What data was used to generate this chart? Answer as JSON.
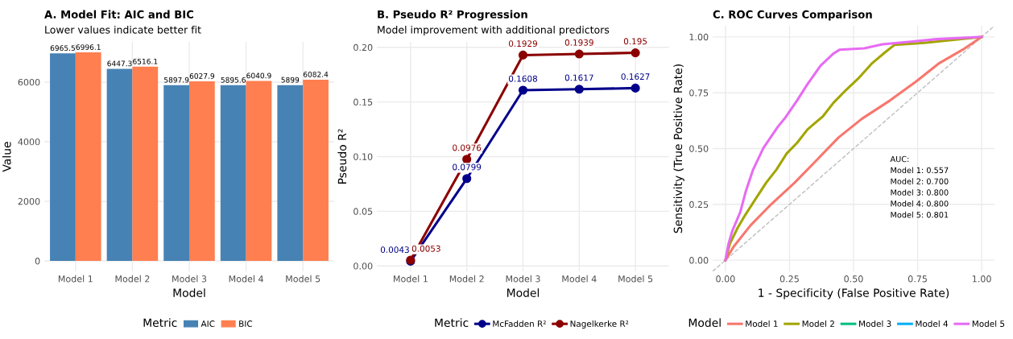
{
  "chart_data": [
    {
      "type": "bar",
      "title": "A. Model Fit: AIC and BIC",
      "subtitle": "Lower values indicate better fit",
      "xlabel": "Model",
      "ylabel": "Value",
      "legend_title": "Metric",
      "categories": [
        "Model 1",
        "Model 2",
        "Model 3",
        "Model 4",
        "Model 5"
      ],
      "series": [
        {
          "name": "AIC",
          "color": "#4682b4",
          "values": [
            6965.5,
            6447.3,
            5897.9,
            5895.6,
            5899
          ]
        },
        {
          "name": "BIC",
          "color": "#ff7f50",
          "values": [
            6996.1,
            6516.1,
            6027.9,
            6040.9,
            6082.4
          ]
        }
      ],
      "ylim": [
        -350,
        7350
      ],
      "yticks": [
        0,
        2000,
        4000,
        6000
      ],
      "grid": true,
      "legend": "bottom",
      "data_labels": true
    },
    {
      "type": "line",
      "title": "B. Pseudo R² Progression",
      "subtitle": "Model improvement with additional predictors",
      "xlabel": "Model",
      "ylabel": "Pseudo R²",
      "legend_title": "Metric",
      "categories": [
        "Model 1",
        "Model 2",
        "Model 3",
        "Model 4",
        "Model 5"
      ],
      "series": [
        {
          "name": "McFadden R²",
          "color": "#00008b",
          "values": [
            0.0043,
            0.0799,
            0.1608,
            0.1617,
            0.1627
          ]
        },
        {
          "name": "Nagelkerke R²",
          "color": "#8b0000",
          "values": [
            0.0053,
            0.0976,
            0.1929,
            0.1939,
            0.195
          ]
        }
      ],
      "ylim": [
        -0.005,
        0.205
      ],
      "yticks": [
        {
          "value": 0,
          "label": "0.00"
        },
        {
          "value": 0.05,
          "label": "0.05"
        },
        {
          "value": 0.1,
          "label": "0.10"
        },
        {
          "value": 0.15,
          "label": "0.15"
        },
        {
          "value": 0.2,
          "label": "0.20"
        }
      ],
      "grid": true,
      "legend": "bottom",
      "marker": "circle",
      "data_labels": true
    },
    {
      "type": "line",
      "title": "C. ROC Curves Comparison",
      "xlabel": "1 - Specificity (False Positive Rate)",
      "ylabel": "Sensitivity (True Positive Rate)",
      "legend_title": "Model",
      "series": [
        {
          "type": "line",
          "line_style": "dashed",
          "color": "#bebebe",
          "x": [
            -0.05,
            1.05
          ],
          "values": [
            -0.05,
            1.05
          ]
        },
        {
          "name": "Model 1",
          "color": "#f8766d",
          "x": [
            0,
            0.032,
            0.098,
            0.179,
            0.27,
            0.361,
            0.441,
            0.532,
            0.643,
            0.744,
            0.835,
            0.926,
            1
          ],
          "values": [
            0,
            0.061,
            0.156,
            0.251,
            0.347,
            0.454,
            0.549,
            0.633,
            0.716,
            0.8,
            0.883,
            0.943,
            1
          ]
        },
        {
          "name": "Model 2",
          "color": "#a3a500",
          "x": [
            0,
            0.017,
            0.047,
            0.078,
            0.118,
            0.159,
            0.199,
            0.239,
            0.28,
            0.32,
            0.381,
            0.421,
            0.472,
            0.522,
            0.573,
            0.623,
            0.659,
            0.775,
            1
          ],
          "values": [
            0,
            0.073,
            0.144,
            0.204,
            0.275,
            0.347,
            0.406,
            0.478,
            0.526,
            0.585,
            0.645,
            0.704,
            0.764,
            0.818,
            0.883,
            0.931,
            0.964,
            0.973,
            1
          ]
        },
        {
          "name": "Model 3",
          "color": "#00bf7d"
        },
        {
          "name": "Model 4",
          "color": "#00b0f6"
        },
        {
          "name": "Model 5",
          "color": "#e76bf3",
          "x": [
            0,
            0.012,
            0.027,
            0.058,
            0.08,
            0.108,
            0.148,
            0.204,
            0.234,
            0.28,
            0.32,
            0.371,
            0.421,
            0.446,
            0.542,
            0.613,
            0.724,
            0.825,
            1
          ],
          "values": [
            0,
            0.073,
            0.132,
            0.216,
            0.311,
            0.406,
            0.502,
            0.597,
            0.639,
            0.716,
            0.788,
            0.871,
            0.925,
            0.943,
            0.949,
            0.967,
            0.979,
            0.99,
            1
          ]
        }
      ],
      "xlim": [
        -0.05,
        1.05
      ],
      "ylim": [
        -0.05,
        1.05
      ],
      "xticks": [
        {
          "value": 0,
          "label": "0.00"
        },
        {
          "value": 0.25,
          "label": "0.25"
        },
        {
          "value": 0.5,
          "label": "0.50"
        },
        {
          "value": 0.75,
          "label": "0.75"
        },
        {
          "value": 1,
          "label": "1.00"
        }
      ],
      "yticks": [
        {
          "value": 0,
          "label": "0.00"
        },
        {
          "value": 0.25,
          "label": "0.25"
        },
        {
          "value": 0.5,
          "label": "0.50"
        },
        {
          "value": 0.75,
          "label": "0.75"
        },
        {
          "value": 1,
          "label": "1.00"
        }
      ],
      "grid": true,
      "legend": "bottom",
      "annotations": [
        "AUC:\nModel 1: 0.557\nModel 2: 0.700\nModel 3: 0.800\nModel 4: 0.800\nModel 5: 0.801"
      ]
    }
  ]
}
